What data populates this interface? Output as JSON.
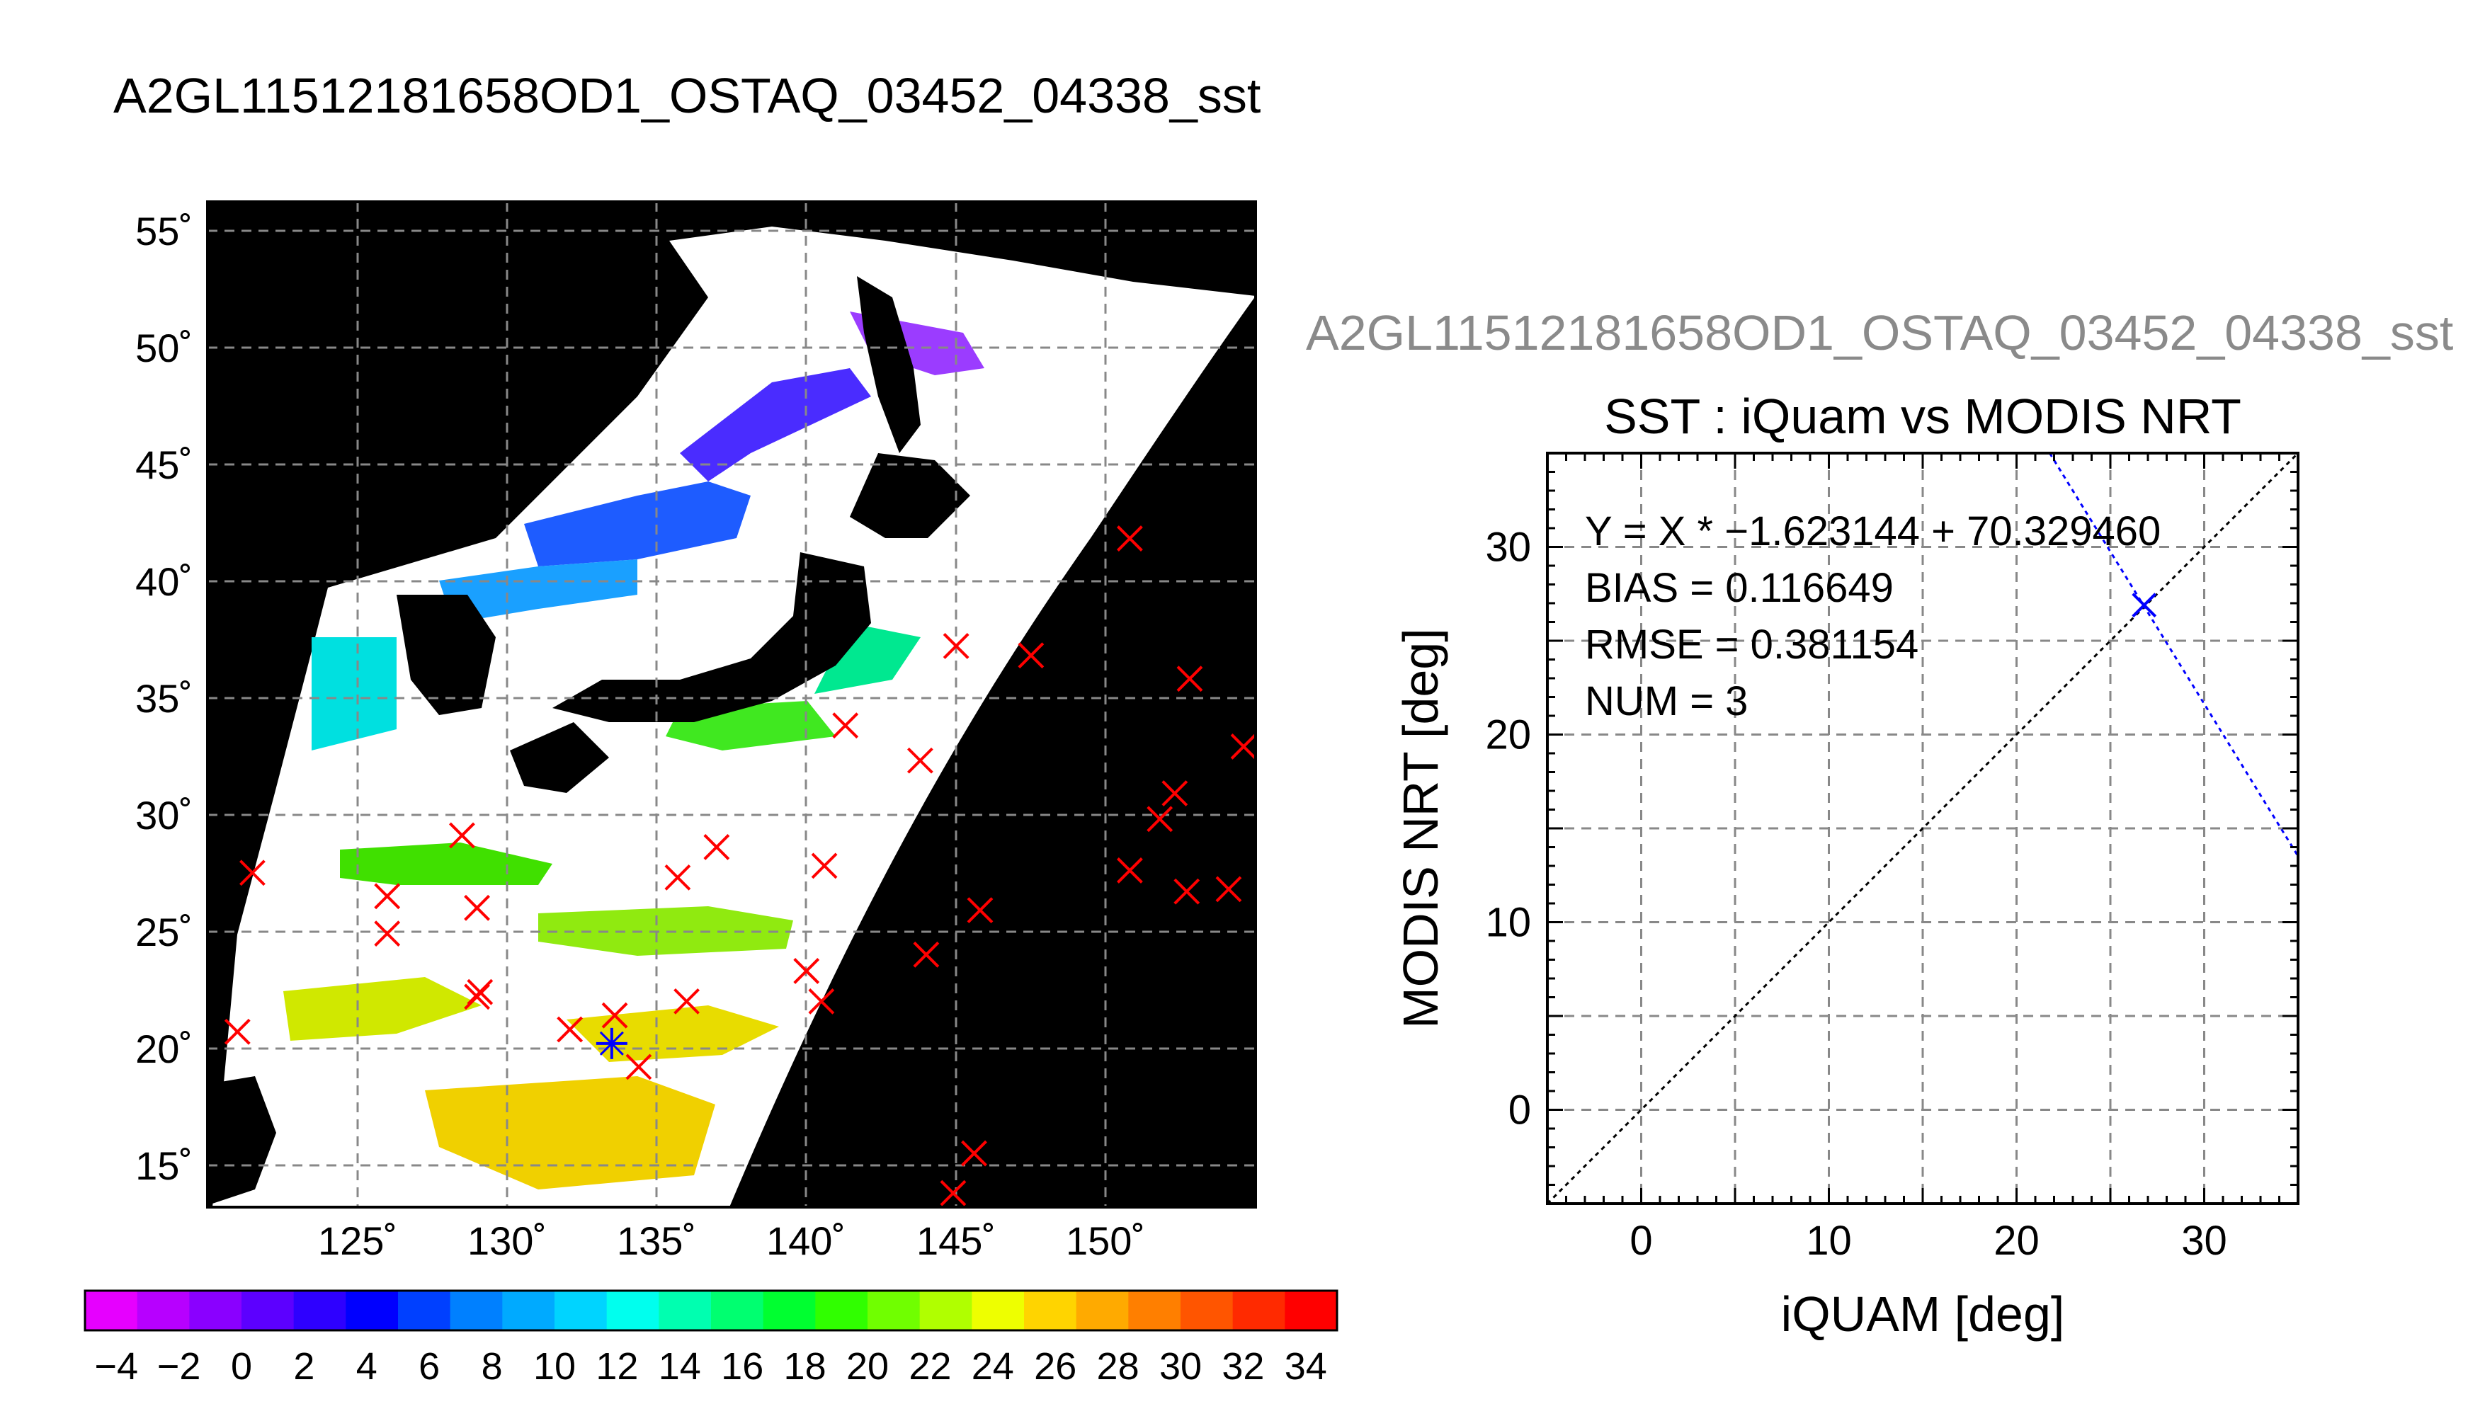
{
  "title": "A2GL11512181658OD1_OSTAQ_03452_04338_sst",
  "subtitle": "A2GL11512181658OD1_OSTAQ_03452_04338_sst",
  "chart_data": [
    {
      "type": "map",
      "lon_ticks": [
        125,
        130,
        135,
        140,
        145,
        150
      ],
      "lat_ticks": [
        15,
        20,
        25,
        30,
        35,
        40,
        45,
        50,
        55
      ],
      "lon_tick_labels": [
        "125˚",
        "130˚",
        "135˚",
        "140˚",
        "145˚",
        "150˚"
      ],
      "lat_tick_labels": [
        "15˚",
        "20˚",
        "25˚",
        "30˚",
        "35˚",
        "40˚",
        "45˚",
        "50˚",
        "55˚"
      ],
      "lon_range": [
        120,
        155
      ],
      "lat_range": [
        13,
        56
      ],
      "grid": true,
      "colorbar": {
        "range": [
          -5,
          35
        ],
        "tick_labels": [
          "−4",
          "−2",
          "0",
          "2",
          "4",
          "6",
          "8",
          "10",
          "12",
          "14",
          "16",
          "18",
          "20",
          "22",
          "24",
          "26",
          "28",
          "30",
          "32",
          "34"
        ],
        "colors": [
          "#e600ff",
          "#b700ff",
          "#8a00ff",
          "#5c00ff",
          "#2e00ff",
          "#0000ff",
          "#0040ff",
          "#0080ff",
          "#00aaff",
          "#00d4ff",
          "#00ffee",
          "#00ffb0",
          "#00ff70",
          "#00ff30",
          "#30ff00",
          "#70ff00",
          "#b0ff00",
          "#eeff00",
          "#ffd400",
          "#ffaa00",
          "#ff7f00",
          "#ff5500",
          "#ff2a00",
          "#ff0000"
        ]
      },
      "markers_red": [
        {
          "lon": 121.5,
          "lat": 27.3
        },
        {
          "lon": 121.0,
          "lat": 20.5
        },
        {
          "lon": 126.0,
          "lat": 26.3
        },
        {
          "lon": 126.0,
          "lat": 24.7
        },
        {
          "lon": 128.5,
          "lat": 28.9
        },
        {
          "lon": 129.0,
          "lat": 25.8
        },
        {
          "lon": 129.1,
          "lat": 22.2
        },
        {
          "lon": 129.0,
          "lat": 22.0
        },
        {
          "lon": 132.1,
          "lat": 20.6
        },
        {
          "lon": 133.6,
          "lat": 21.2
        },
        {
          "lon": 134.4,
          "lat": 19.0
        },
        {
          "lon": 135.7,
          "lat": 27.1
        },
        {
          "lon": 136.0,
          "lat": 21.8
        },
        {
          "lon": 137.0,
          "lat": 28.4
        },
        {
          "lon": 140.0,
          "lat": 23.1
        },
        {
          "lon": 140.5,
          "lat": 21.8
        },
        {
          "lon": 140.6,
          "lat": 27.6
        },
        {
          "lon": 141.3,
          "lat": 33.6
        },
        {
          "lon": 143.8,
          "lat": 32.1
        },
        {
          "lon": 144.0,
          "lat": 23.8
        },
        {
          "lon": 145.0,
          "lat": 37.0
        },
        {
          "lon": 145.8,
          "lat": 25.7
        },
        {
          "lon": 145.6,
          "lat": 15.3
        },
        {
          "lon": 144.9,
          "lat": 13.6
        },
        {
          "lon": 147.5,
          "lat": 36.6
        },
        {
          "lon": 150.8,
          "lat": 41.6
        },
        {
          "lon": 150.8,
          "lat": 27.4
        },
        {
          "lon": 151.8,
          "lat": 29.6
        },
        {
          "lon": 152.3,
          "lat": 30.7
        },
        {
          "lon": 152.7,
          "lat": 26.5
        },
        {
          "lon": 152.8,
          "lat": 35.6
        },
        {
          "lon": 154.1,
          "lat": 26.6
        },
        {
          "lon": 154.6,
          "lat": 32.7
        }
      ],
      "markers_blue": [
        {
          "lon": 133.5,
          "lat": 20.0
        }
      ]
    },
    {
      "type": "scatter",
      "title": "SST : iQuam vs MODIS NRT",
      "xlabel": "iQUAM [deg]",
      "ylabel": "MODIS NRT [deg]",
      "xlim": [
        -5,
        35
      ],
      "ylim": [
        -5,
        35
      ],
      "x_ticks": [
        0,
        10,
        20,
        30
      ],
      "y_ticks": [
        0,
        10,
        20,
        30
      ],
      "grid": true,
      "annotations": [
        "Y = X * −1.623144 + 70.329460",
        "BIAS = 0.116649",
        "RMSE = 0.381154",
        "NUM = 3"
      ],
      "points": [
        {
          "x": 26.8,
          "y": 26.9
        }
      ],
      "reference_line": {
        "slope": 1,
        "intercept": 0
      },
      "fit_line": {
        "slope": -1.623144,
        "intercept": 70.32946
      }
    }
  ]
}
